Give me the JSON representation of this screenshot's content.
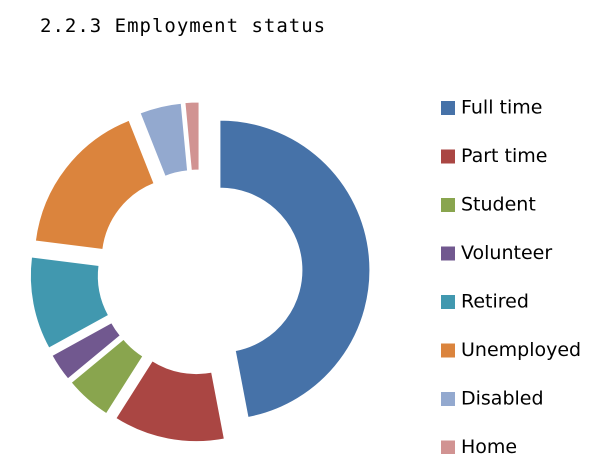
{
  "chart_data": {
    "type": "donut",
    "title": "2.2.3 Employment status",
    "categories": [
      "Full time",
      "Part time",
      "Student",
      "Volunteer",
      "Retired",
      "Unemployed",
      "Disabled",
      "Home"
    ],
    "values": [
      47,
      12,
      5,
      3,
      10,
      17,
      4.5,
      1.5
    ],
    "colors": [
      "#4672A8",
      "#AA4643",
      "#89A54E",
      "#71588F",
      "#4198AF",
      "#DB843D",
      "#93A9CF",
      "#D19392"
    ],
    "legend": "right"
  }
}
